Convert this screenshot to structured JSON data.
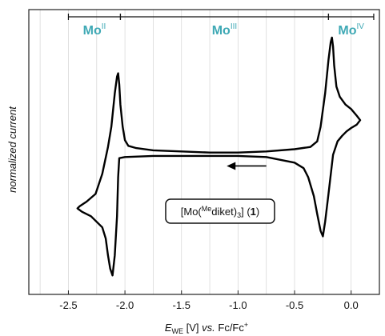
{
  "chart_data": {
    "type": "line",
    "xlabel": {
      "var": "E",
      "sub": "WE",
      "unit": " [V] ",
      "vs": "vs.",
      "ref": " Fc/Fc",
      "refsup": "+"
    },
    "ylabel": "normalized current",
    "xlim": [
      -2.85,
      0.25
    ],
    "ylim": [
      -1.3,
      1.25
    ],
    "xticks": [
      -2.5,
      -2.0,
      -1.5,
      -1.0,
      -0.5,
      0.0
    ],
    "xtick_labels": [
      "-2.5",
      "-2.0",
      "-1.5",
      "-1.0",
      "-0.5",
      "0.0"
    ],
    "grid_x": [
      -2.75,
      -2.5,
      -2.25,
      -2.0,
      -1.75,
      -1.5,
      -1.25,
      -1.0,
      -0.75,
      -0.5,
      -0.25,
      0.0,
      0.25
    ],
    "grid": "vertical",
    "regions": [
      {
        "label": "Mo",
        "sup": "II",
        "from": -2.5,
        "to": -2.04
      },
      {
        "label": "Mo",
        "sup": "III",
        "from": -2.04,
        "to": -0.2
      },
      {
        "label": "Mo",
        "sup": "IV",
        "from": -0.2,
        "to": 0.2
      }
    ],
    "compound_label": {
      "pre": "[Mo(",
      "sup": "Me",
      "mid": "diket)",
      "sub": "3",
      "post": "] (",
      "bold": "1",
      "end": ")"
    },
    "arrow": {
      "from_x": -0.75,
      "to_x": -1.1,
      "y": -0.15
    },
    "series": [
      {
        "points": [
          [
            0.08,
            0.26
          ],
          [
            0.05,
            0.3
          ],
          [
            0.0,
            0.36
          ],
          [
            -0.05,
            0.4
          ],
          [
            -0.1,
            0.47
          ],
          [
            -0.13,
            0.56
          ],
          [
            -0.15,
            0.75
          ],
          [
            -0.16,
            0.92
          ],
          [
            -0.17,
            1.0
          ],
          [
            -0.18,
            0.96
          ],
          [
            -0.2,
            0.8
          ],
          [
            -0.23,
            0.5
          ],
          [
            -0.27,
            0.2
          ],
          [
            -0.3,
            0.07
          ],
          [
            -0.36,
            0.02
          ],
          [
            -0.5,
            0.0
          ],
          [
            -0.75,
            -0.02
          ],
          [
            -1.0,
            -0.03
          ],
          [
            -1.25,
            -0.03
          ],
          [
            -1.5,
            -0.02
          ],
          [
            -1.75,
            -0.01
          ],
          [
            -1.9,
            0.01
          ],
          [
            -1.97,
            0.03
          ],
          [
            -2.0,
            0.08
          ],
          [
            -2.02,
            0.2
          ],
          [
            -2.04,
            0.4
          ],
          [
            -2.05,
            0.58
          ],
          [
            -2.06,
            0.68
          ],
          [
            -2.07,
            0.65
          ],
          [
            -2.09,
            0.5
          ],
          [
            -2.12,
            0.2
          ],
          [
            -2.15,
            0.02
          ],
          [
            -2.2,
            -0.22
          ],
          [
            -2.26,
            -0.4
          ],
          [
            -2.34,
            -0.47
          ],
          [
            -2.4,
            -0.51
          ],
          [
            -2.42,
            -0.53
          ],
          [
            -2.38,
            -0.56
          ],
          [
            -2.3,
            -0.6
          ],
          [
            -2.2,
            -0.7
          ],
          [
            -2.17,
            -0.8
          ],
          [
            -2.15,
            -0.95
          ],
          [
            -2.13,
            -1.07
          ],
          [
            -2.11,
            -1.13
          ],
          [
            -2.09,
            -0.95
          ],
          [
            -2.07,
            -0.6
          ],
          [
            -2.06,
            -0.25
          ],
          [
            -2.05,
            -0.08
          ],
          [
            -2.0,
            -0.07
          ],
          [
            -1.75,
            -0.06
          ],
          [
            -1.5,
            -0.06
          ],
          [
            -1.25,
            -0.06
          ],
          [
            -1.0,
            -0.06
          ],
          [
            -0.75,
            -0.07
          ],
          [
            -0.5,
            -0.12
          ],
          [
            -0.42,
            -0.17
          ],
          [
            -0.38,
            -0.25
          ],
          [
            -0.33,
            -0.42
          ],
          [
            -0.3,
            -0.58
          ],
          [
            -0.27,
            -0.73
          ],
          [
            -0.25,
            -0.78
          ],
          [
            -0.23,
            -0.65
          ],
          [
            -0.2,
            -0.4
          ],
          [
            -0.16,
            -0.05
          ],
          [
            -0.12,
            0.07
          ],
          [
            -0.08,
            0.12
          ],
          [
            -0.04,
            0.16
          ],
          [
            0.0,
            0.19
          ],
          [
            0.05,
            0.22
          ],
          [
            0.08,
            0.26
          ]
        ]
      }
    ]
  }
}
